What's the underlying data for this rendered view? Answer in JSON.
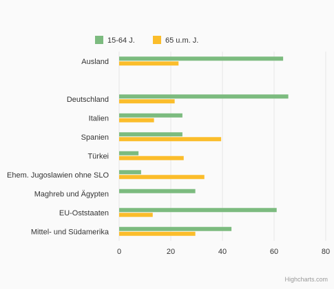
{
  "chart_data": {
    "type": "bar",
    "orientation": "horizontal",
    "categories": [
      "Ausland",
      "",
      "Deutschland",
      "Italien",
      "Spanien",
      "Türkei",
      "Ehem. Jugoslawien ohne SLO",
      "Maghreb und Ägypten",
      "EU-Oststaaten",
      "Mittel- und Südamerika"
    ],
    "series": [
      {
        "name": "15-64 J.",
        "color": "#7cbb7f",
        "values": [
          63.5,
          null,
          65.5,
          24.5,
          24.5,
          7.5,
          8.5,
          29.5,
          61,
          43.5
        ]
      },
      {
        "name": "65 u.m. J.",
        "color": "#fbbd2b",
        "values": [
          23,
          null,
          21.5,
          13.5,
          39.5,
          25,
          33,
          null,
          13,
          29.5
        ]
      }
    ],
    "xlim": [
      0,
      80
    ],
    "xticks": [
      "0",
      "20",
      "40",
      "60",
      "80"
    ],
    "grid": true,
    "legend_position": "top-center",
    "title": "",
    "xlabel": "",
    "ylabel": ""
  },
  "credits": "Highcharts.com"
}
